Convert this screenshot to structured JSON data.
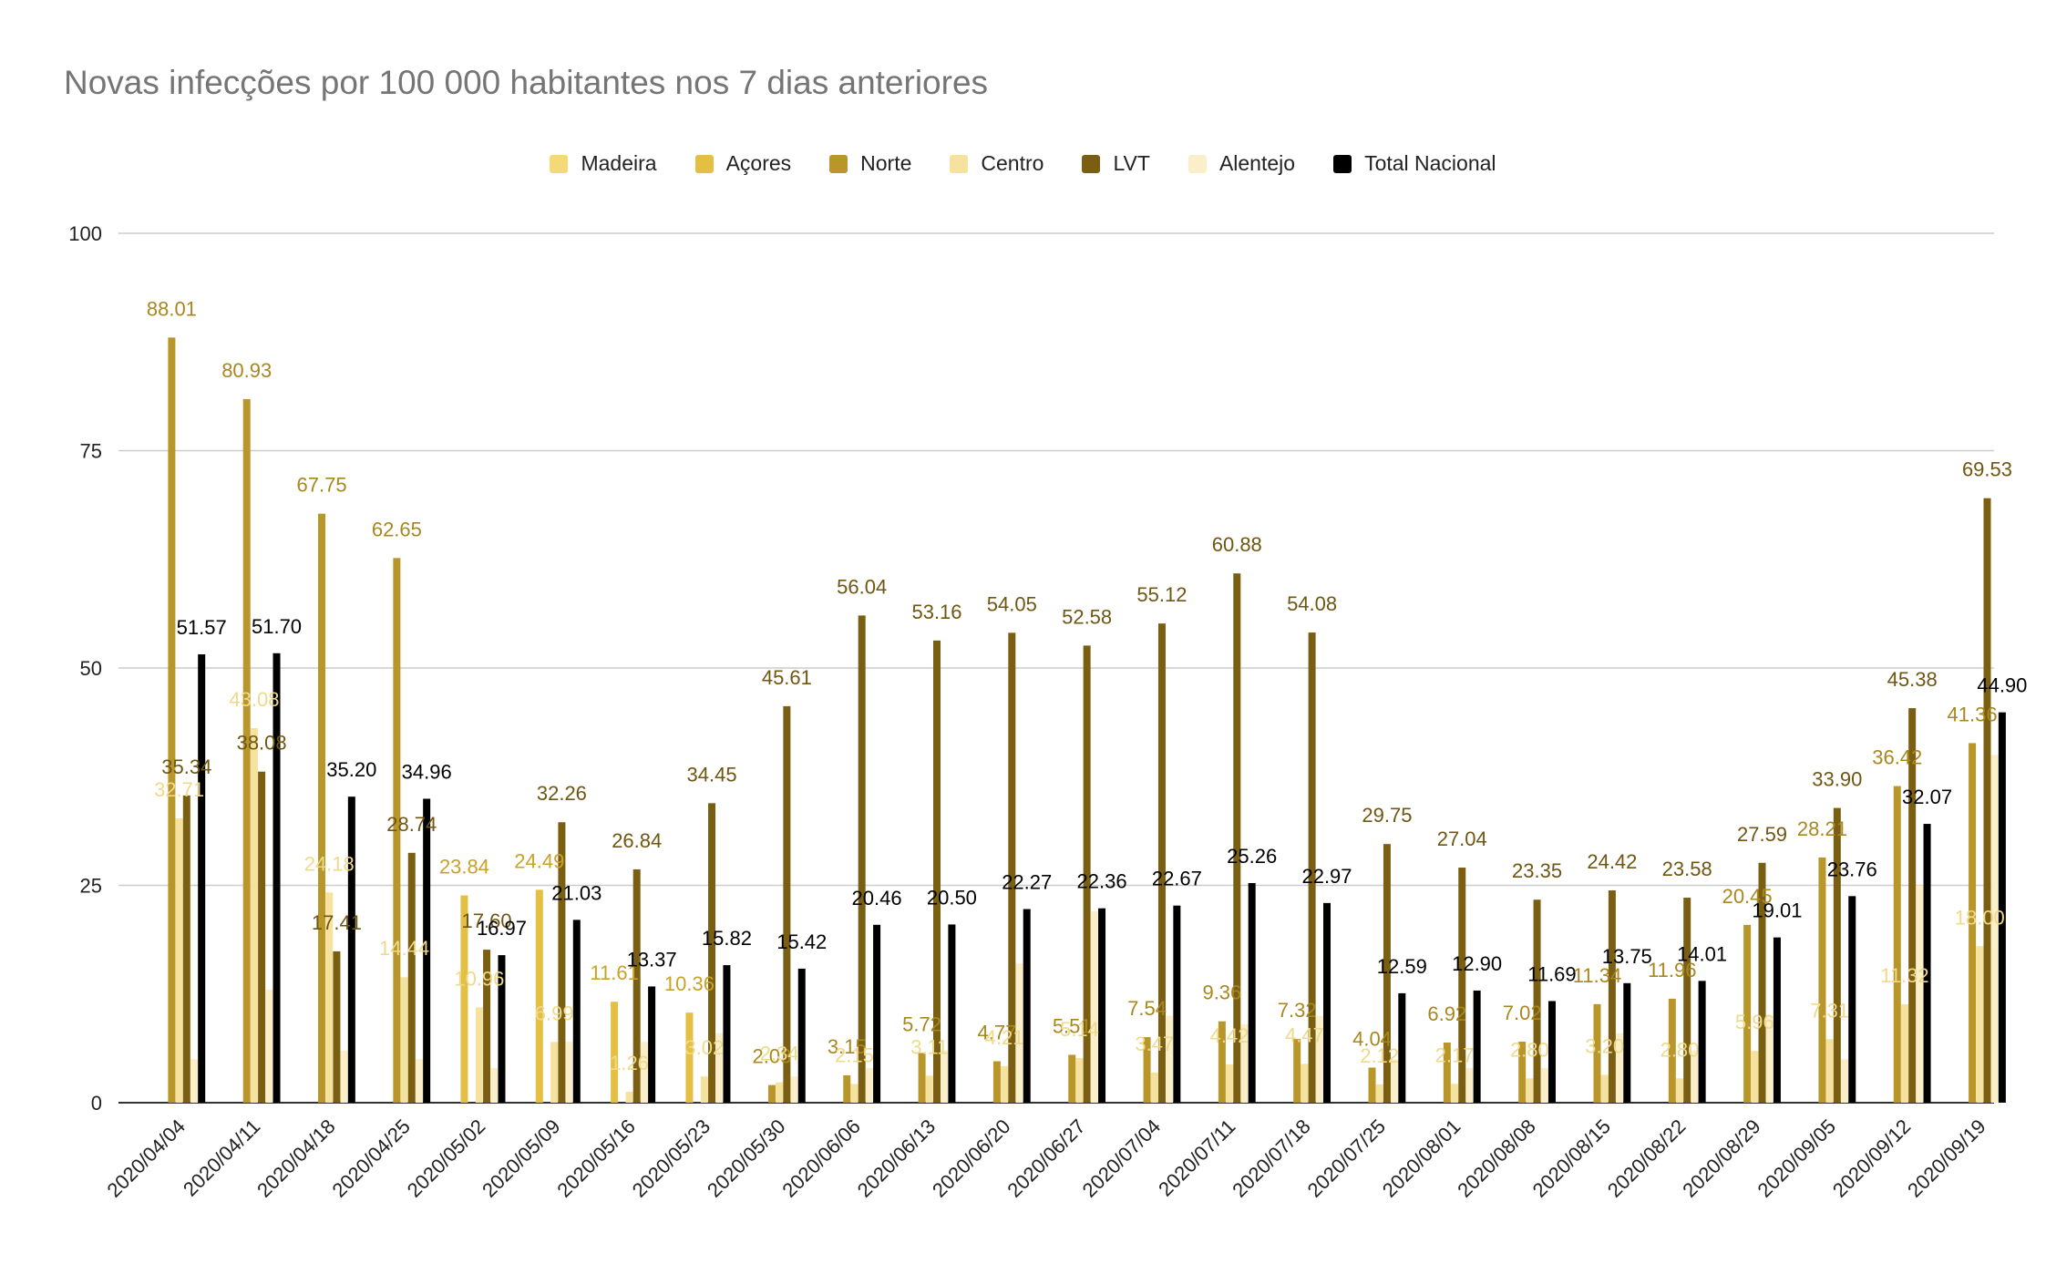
{
  "chart_data": {
    "type": "bar",
    "title": "Novas infecções por 100 000 habitantes nos 7 dias anteriores",
    "xlabel": "",
    "ylabel": "",
    "ylim": [
      0,
      100
    ],
    "yticks": [
      0,
      25,
      50,
      75,
      100
    ],
    "legend_position": "top",
    "grid": true,
    "categories": [
      "2020/04/04",
      "2020/04/11",
      "2020/04/18",
      "2020/04/25",
      "2020/05/02",
      "2020/05/09",
      "2020/05/16",
      "2020/05/23",
      "2020/05/30",
      "2020/06/06",
      "2020/06/13",
      "2020/06/20",
      "2020/06/27",
      "2020/07/04",
      "2020/07/11",
      "2020/07/18",
      "2020/07/25",
      "2020/08/01",
      "2020/08/08",
      "2020/08/15",
      "2020/08/22",
      "2020/08/29",
      "2020/09/05",
      "2020/09/12",
      "2020/09/19"
    ],
    "series": [
      {
        "name": "Madeira",
        "color": "#f4d977",
        "label_color": "#f4d977",
        "values": [
          0,
          0,
          0,
          0,
          0,
          0,
          0,
          0,
          0,
          0,
          0,
          0,
          0,
          0,
          0,
          0,
          0,
          0,
          0,
          0,
          0,
          0,
          0,
          0,
          0
        ],
        "labels": [
          "",
          "",
          "",
          "",
          "",
          "",
          "",
          "",
          "",
          "",
          "",
          "",
          "",
          "",
          "",
          "",
          "",
          "",
          "",
          "",
          "",
          "",
          "",
          "",
          ""
        ]
      },
      {
        "name": "Açores",
        "color": "#e3c043",
        "label_color": "#c9a227",
        "values": [
          0,
          0,
          0,
          0,
          23.84,
          24.49,
          11.61,
          10.36,
          0,
          0,
          0,
          0,
          0,
          0,
          0,
          0,
          0,
          0,
          0,
          0,
          0,
          0,
          0,
          0,
          0
        ],
        "labels": [
          "",
          "",
          "",
          "",
          "23.84",
          "24.49",
          "11.61",
          "10.36",
          "",
          "",
          "",
          "",
          "",
          "",
          "",
          "",
          "",
          "",
          "",
          "",
          "",
          "",
          "",
          "",
          ""
        ]
      },
      {
        "name": "Norte",
        "color": "#b8962a",
        "label_color": "#a8871f",
        "values": [
          88.01,
          80.93,
          67.75,
          62.65,
          0,
          0,
          0,
          0,
          2.03,
          3.15,
          5.72,
          4.77,
          5.51,
          7.54,
          9.36,
          7.32,
          4.04,
          6.92,
          7.02,
          11.34,
          11.96,
          20.45,
          28.21,
          36.42,
          41.36
        ],
        "labels": [
          "88.01",
          "80.93",
          "67.75",
          "62.65",
          "",
          "",
          "",
          "",
          "2.03",
          "3.15",
          "5.72",
          "4.77",
          "5.51",
          "7.54",
          "9.36",
          "7.32",
          "4.04",
          "6.92",
          "7.02",
          "11.34",
          "11.96",
          "20.45",
          "28.21",
          "36.42",
          "41.36"
        ]
      },
      {
        "name": "Centro",
        "color": "#f5e29e",
        "label_color": "#f0d98a",
        "values": [
          32.71,
          43.08,
          24.18,
          14.44,
          10.96,
          6.99,
          1.26,
          3.02,
          2.34,
          2.15,
          3.11,
          4.21,
          5.14,
          3.47,
          4.42,
          4.47,
          2.12,
          2.17,
          2.8,
          3.2,
          2.8,
          5.96,
          7.31,
          11.32,
          18.0
        ],
        "labels": [
          "32.71",
          "43.08",
          "24.18",
          "14.44",
          "10.96",
          "6.99",
          "1.26",
          "3.02",
          "2.34",
          "2.15",
          "3.11",
          "4.21",
          "5.14",
          "3.47",
          "4.42",
          "4.47",
          "2.12",
          "2.17",
          "2.80",
          "3.20",
          "2.80",
          "5.96",
          "7.31",
          "11.32",
          "18.00"
        ]
      },
      {
        "name": "LVT",
        "color": "#7a5f12",
        "label_color": "#6f5612",
        "values": [
          35.34,
          38.08,
          17.41,
          28.74,
          17.6,
          32.26,
          26.84,
          34.45,
          45.61,
          56.04,
          53.16,
          54.05,
          52.58,
          55.12,
          60.88,
          54.08,
          29.75,
          27.04,
          23.35,
          24.42,
          23.58,
          27.59,
          33.9,
          45.38,
          69.53
        ],
        "labels": [
          "35.34",
          "38.08",
          "17.41",
          "28.74",
          "17.60",
          "32.26",
          "26.84",
          "34.45",
          "45.61",
          "56.04",
          "53.16",
          "54.05",
          "52.58",
          "55.12",
          "60.88",
          "54.08",
          "29.75",
          "27.04",
          "23.35",
          "24.42",
          "23.58",
          "27.59",
          "33.90",
          "45.38",
          "69.53"
        ]
      },
      {
        "name": "Alentejo",
        "color": "#faefc8",
        "label_color": "#f5e6b0",
        "values": [
          5,
          13,
          6,
          5,
          4,
          7,
          7,
          8,
          3,
          4,
          6,
          16,
          22,
          10,
          9,
          10,
          5,
          4,
          4,
          8,
          6,
          10,
          5,
          25,
          40
        ],
        "labels": [
          "",
          "",
          "",
          "",
          "",
          "",
          "",
          "",
          "",
          "",
          "",
          "",
          "",
          "",
          "",
          "",
          "",
          "",
          "",
          "",
          "",
          "",
          "",
          "",
          ""
        ]
      },
      {
        "name": "Total Nacional",
        "color": "#000000",
        "label_color": "#000000",
        "values": [
          51.57,
          51.7,
          35.2,
          34.96,
          16.97,
          21.03,
          13.37,
          15.82,
          15.42,
          20.46,
          20.5,
          22.27,
          22.36,
          22.67,
          25.26,
          22.97,
          12.59,
          12.9,
          11.69,
          13.75,
          14.01,
          19.01,
          23.76,
          32.07,
          44.9
        ],
        "labels": [
          "51.57",
          "51.70",
          "35.20",
          "34.96",
          "16.97",
          "21.03",
          "13.37",
          "15.82",
          "15.42",
          "20.46",
          "20.50",
          "22.27",
          "22.36",
          "22.67",
          "25.26",
          "22.97",
          "12.59",
          "12.90",
          "11.69",
          "13.75",
          "14.01",
          "19.01",
          "23.76",
          "32.07",
          "44.90"
        ]
      }
    ]
  }
}
